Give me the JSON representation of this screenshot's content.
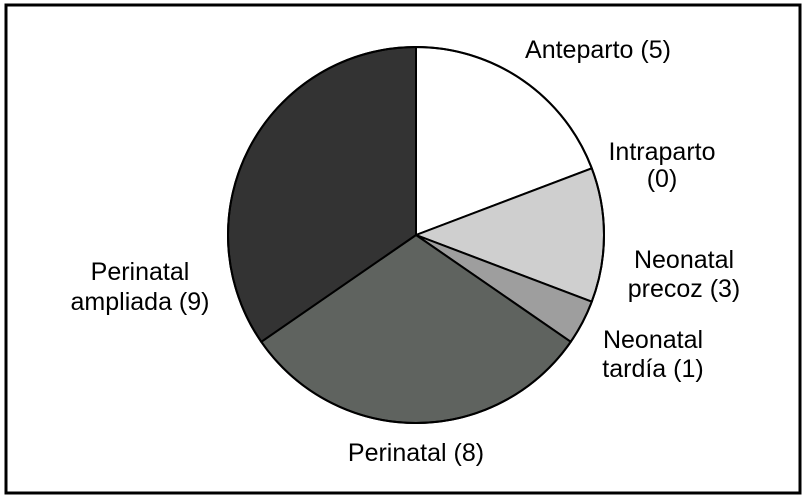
{
  "chart_data": {
    "type": "pie",
    "slices": [
      {
        "label": "Anteparto (5)",
        "lines": [
          "Anteparto (5)"
        ],
        "value": 5,
        "color": "#ffffff"
      },
      {
        "label": "Intraparto (0)",
        "lines": [
          "Intraparto",
          "(0)"
        ],
        "value": 0,
        "color": "#ffffff"
      },
      {
        "label": "Neonatal precoz (3)",
        "lines": [
          "Neonatal",
          "precoz (3)"
        ],
        "value": 3,
        "color": "#cfcfcf"
      },
      {
        "label": "Neonatal tardía (1)",
        "lines": [
          "Neonatal",
          "tardía (1)"
        ],
        "value": 1,
        "color": "#9e9e9e"
      },
      {
        "label": "Perinatal (8)",
        "lines": [
          "Perinatal (8)"
        ],
        "value": 8,
        "color": "#5f635f"
      },
      {
        "label": "Perinatal ampliada (9)",
        "lines": [
          "Perinatal",
          "ampliada (9)"
        ],
        "value": 9,
        "color": "#333333"
      }
    ],
    "start_angle_deg": 0,
    "direction": "clockwise"
  }
}
